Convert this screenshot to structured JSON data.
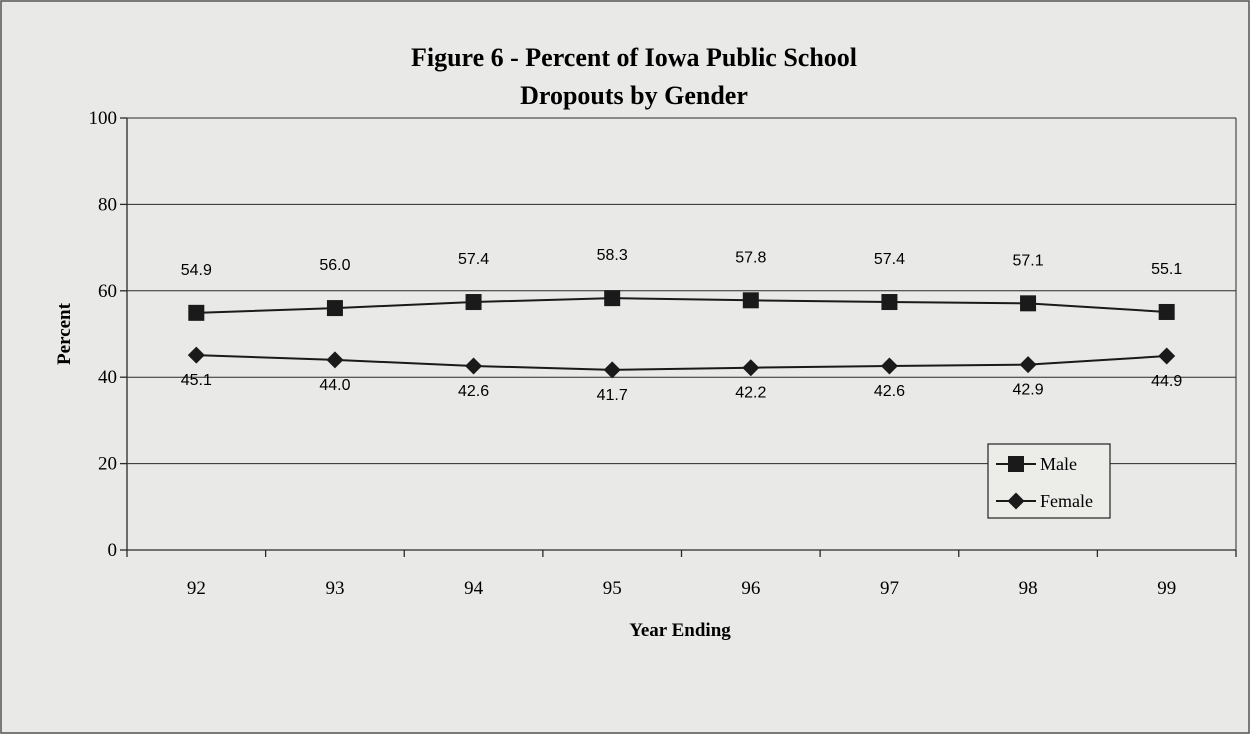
{
  "chart_data": {
    "type": "line",
    "title_line1": "Figure 6 - Percent of Iowa Public School",
    "title_line2": "Dropouts by Gender",
    "xlabel": "Year Ending",
    "ylabel": "Percent",
    "categories": [
      "92",
      "93",
      "94",
      "95",
      "96",
      "97",
      "98",
      "99"
    ],
    "ylim": [
      0,
      100
    ],
    "yticks": [
      "0",
      "20",
      "40",
      "60",
      "80",
      "100"
    ],
    "grid": true,
    "legend_position": "bottom-right",
    "series": [
      {
        "name": "Male",
        "marker": "square",
        "values": [
          54.9,
          56.0,
          57.4,
          58.3,
          57.8,
          57.4,
          57.1,
          55.1
        ],
        "labels": [
          "54.9",
          "56.0",
          "57.4",
          "58.3",
          "57.8",
          "57.4",
          "57.1",
          "55.1"
        ],
        "label_position": "above"
      },
      {
        "name": "Female",
        "marker": "diamond",
        "values": [
          45.1,
          44.0,
          42.6,
          41.7,
          42.2,
          42.6,
          42.9,
          44.9
        ],
        "labels": [
          "45.1",
          "44.0",
          "42.6",
          "41.7",
          "42.2",
          "42.6",
          "42.9",
          "44.9"
        ],
        "label_position": "below"
      }
    ],
    "colors": {
      "line": "#1a1a1a",
      "grid": "#2a2a2a",
      "background": "#e9e9e7"
    }
  }
}
